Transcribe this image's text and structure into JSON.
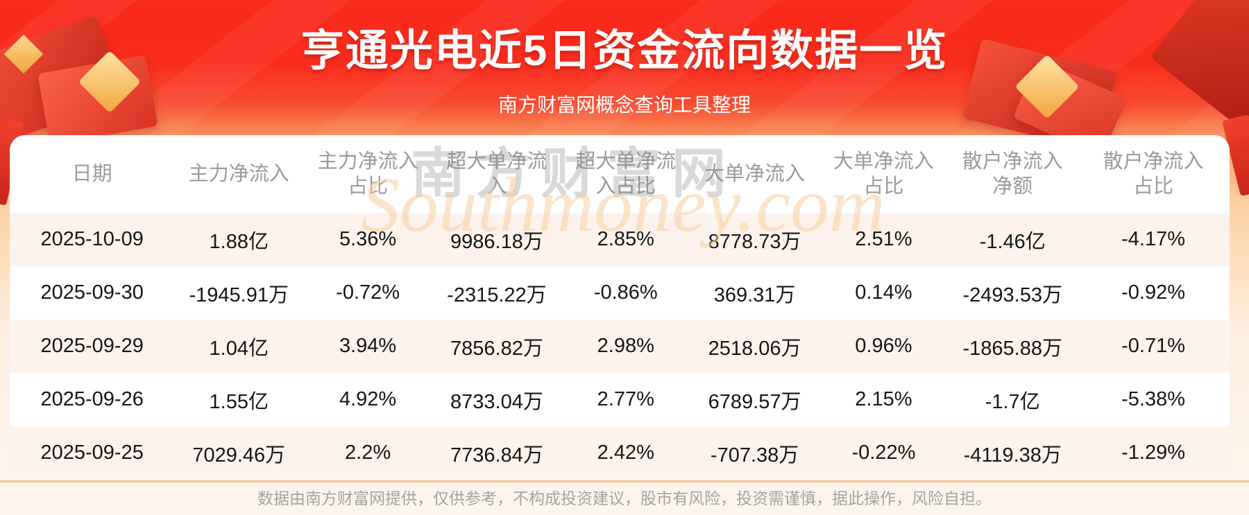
{
  "page": {
    "title": "亨通光电近5日资金流向数据一览",
    "subtitle": "南方财富网概念查询工具整理"
  },
  "table": {
    "columns": [
      "日期",
      "主力净流入",
      "主力净流入\n占比",
      "超大单净流\n入",
      "超大单净流\n入占比",
      "大单净流入",
      "大单净流入\n占比",
      "散户净流入\n净额",
      "散户净流入\n占比"
    ],
    "rows": [
      [
        "2025-10-09",
        "1.88亿",
        "5.36%",
        "9986.18万",
        "2.85%",
        "8778.73万",
        "2.51%",
        "-1.46亿",
        "-4.17%"
      ],
      [
        "2025-09-30",
        "-1945.91万",
        "-0.72%",
        "-2315.22万",
        "-0.86%",
        "369.31万",
        "0.14%",
        "-2493.53万",
        "-0.92%"
      ],
      [
        "2025-09-29",
        "1.04亿",
        "3.94%",
        "7856.82万",
        "2.98%",
        "2518.06万",
        "0.96%",
        "-1865.88万",
        "-0.71%"
      ],
      [
        "2025-09-26",
        "1.55亿",
        "4.92%",
        "8733.04万",
        "2.77%",
        "6789.57万",
        "2.15%",
        "-1.7亿",
        "-5.38%"
      ],
      [
        "2025-09-25",
        "7029.46万",
        "2.2%",
        "7736.84万",
        "2.42%",
        "-707.38万",
        "-0.22%",
        "-4119.38万",
        "-1.29%"
      ]
    ]
  },
  "watermark": {
    "cn": "南方财富网",
    "en": "Southmoney.com"
  },
  "footer": {
    "disclaimer": "数据由南方财富网提供，仅供参考，不构成投资建议，股市有风险，投资需谨慎，据此操作，风险自担。"
  },
  "colors": {
    "banner_red": "#fb2a1b",
    "banner_orange": "#f99160",
    "row_alt": "#fdf3ec",
    "divider": "#f3c48e",
    "header_text": "#9b9b9b",
    "body_text": "#151515",
    "footer_text": "#a3a3a3",
    "title_text": "#ffffff"
  },
  "chart_data": {
    "type": "table",
    "title": "亨通光电近5日资金流向数据一览",
    "subtitle": "南方财富网概念查询工具整理",
    "columns": [
      "日期",
      "主力净流入",
      "主力净流入占比",
      "超大单净流入",
      "超大单净流入占比",
      "大单净流入",
      "大单净流入占比",
      "散户净流入净额",
      "散户净流入占比"
    ],
    "rows": [
      [
        "2025-10-09",
        "1.88亿",
        "5.36%",
        "9986.18万",
        "2.85%",
        "8778.73万",
        "2.51%",
        "-1.46亿",
        "-4.17%"
      ],
      [
        "2025-09-30",
        "-1945.91万",
        "-0.72%",
        "-2315.22万",
        "-0.86%",
        "369.31万",
        "0.14%",
        "-2493.53万",
        "-0.92%"
      ],
      [
        "2025-09-29",
        "1.04亿",
        "3.94%",
        "7856.82万",
        "2.98%",
        "2518.06万",
        "0.96%",
        "-1865.88万",
        "-0.71%"
      ],
      [
        "2025-09-26",
        "1.55亿",
        "4.92%",
        "8733.04万",
        "2.77%",
        "6789.57万",
        "2.15%",
        "-1.7亿",
        "-5.38%"
      ],
      [
        "2025-09-25",
        "7029.46万",
        "2.2%",
        "7736.84万",
        "2.42%",
        "-707.38万",
        "-0.22%",
        "-4119.38万",
        "-1.29%"
      ]
    ]
  }
}
